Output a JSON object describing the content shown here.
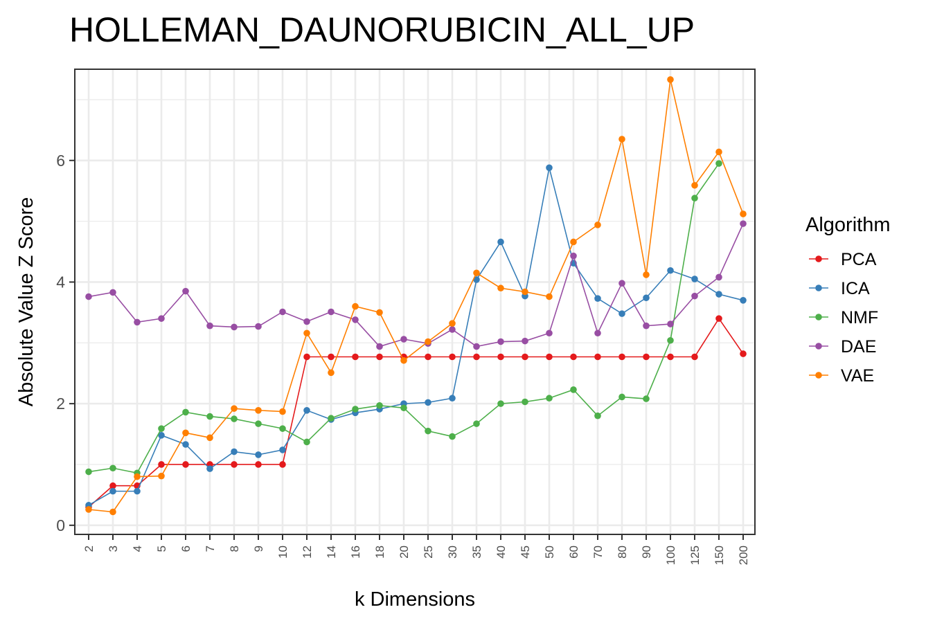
{
  "chart_data": {
    "type": "line",
    "title": "HOLLEMAN_DAUNORUBICIN_ALL_UP",
    "xlabel": "k Dimensions",
    "ylabel": "Absolute Value Z Score",
    "categories": [
      "2",
      "3",
      "4",
      "5",
      "6",
      "7",
      "8",
      "9",
      "10",
      "12",
      "14",
      "16",
      "18",
      "20",
      "25",
      "30",
      "35",
      "40",
      "45",
      "50",
      "60",
      "70",
      "80",
      "90",
      "100",
      "125",
      "150",
      "200"
    ],
    "ylim": [
      -0.15,
      7.5
    ],
    "yticks": [
      0,
      2,
      4,
      6
    ],
    "grid": true,
    "legend_title": "Algorithm",
    "legend_position": "right",
    "series": [
      {
        "name": "PCA",
        "color": "#e41a1c",
        "values": [
          0.3,
          0.65,
          0.65,
          1.0,
          1.0,
          1.0,
          1.0,
          1.0,
          1.0,
          2.77,
          2.77,
          2.77,
          2.77,
          2.77,
          2.77,
          2.77,
          2.77,
          2.77,
          2.77,
          2.77,
          2.77,
          2.77,
          2.77,
          2.77,
          2.77,
          2.77,
          3.4,
          2.82
        ]
      },
      {
        "name": "ICA",
        "color": "#377eb8",
        "values": [
          0.33,
          0.56,
          0.56,
          1.48,
          1.33,
          0.93,
          1.21,
          1.16,
          1.24,
          1.89,
          1.74,
          1.85,
          1.91,
          2.0,
          2.02,
          2.09,
          4.04,
          4.66,
          3.77,
          5.88,
          4.31,
          3.73,
          3.48,
          3.74,
          4.19,
          4.05,
          3.8,
          3.7
        ]
      },
      {
        "name": "NMF",
        "color": "#4daf4a",
        "values": [
          0.88,
          0.94,
          0.86,
          1.59,
          1.86,
          1.79,
          1.75,
          1.67,
          1.59,
          1.37,
          1.76,
          1.91,
          1.97,
          1.93,
          1.55,
          1.46,
          1.67,
          2.0,
          2.03,
          2.09,
          2.23,
          1.8,
          2.11,
          2.08,
          3.04,
          5.38,
          5.95,
          null
        ]
      },
      {
        "name": "DAE",
        "color": "#984ea3",
        "values": [
          3.76,
          3.83,
          3.34,
          3.4,
          3.85,
          3.28,
          3.26,
          3.27,
          3.51,
          3.35,
          3.51,
          3.38,
          2.94,
          3.06,
          2.99,
          3.22,
          2.94,
          3.02,
          3.03,
          3.16,
          4.43,
          3.16,
          3.98,
          3.28,
          3.31,
          3.77,
          4.08,
          4.96
        ]
      },
      {
        "name": "VAE",
        "color": "#ff7f00",
        "values": [
          0.26,
          0.22,
          0.8,
          0.81,
          1.52,
          1.44,
          1.92,
          1.89,
          1.87,
          3.16,
          2.51,
          3.6,
          3.5,
          2.71,
          3.02,
          3.32,
          4.15,
          3.9,
          3.84,
          3.76,
          4.66,
          4.94,
          6.35,
          4.12,
          7.33,
          5.59,
          6.14,
          5.12
        ]
      }
    ]
  }
}
